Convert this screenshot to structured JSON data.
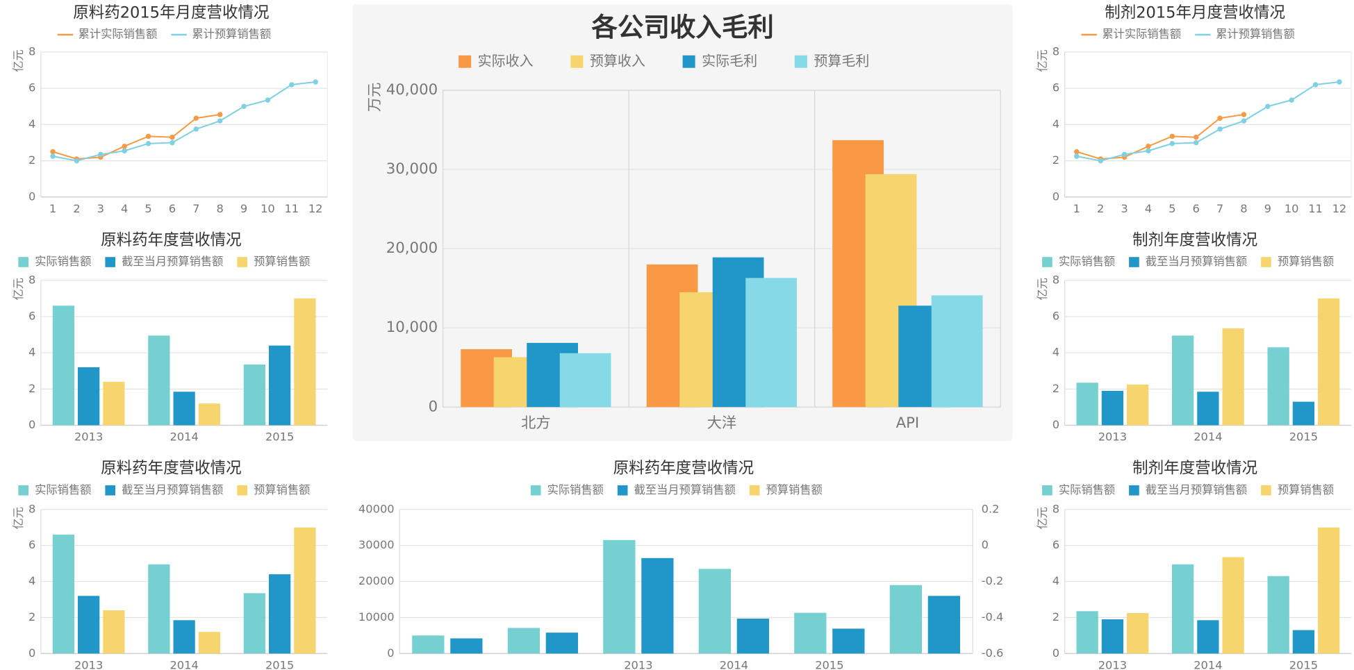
{
  "chart_data": [
    {
      "type": "line",
      "title": "原料药2015年月度营收情况",
      "y_label": "亿元",
      "categories": [
        "1",
        "2",
        "3",
        "4",
        "5",
        "6",
        "7",
        "8",
        "9",
        "10",
        "11",
        "12"
      ],
      "series": [
        {
          "name": "累计实际销售额",
          "color": "#f59a45",
          "values": [
            2.5,
            2.1,
            2.2,
            2.8,
            3.35,
            3.3,
            4.35,
            4.55,
            null,
            null,
            null,
            null
          ]
        },
        {
          "name": "累计预算销售额",
          "color": "#7fd0e0",
          "values": [
            2.25,
            2.0,
            2.35,
            2.55,
            2.95,
            3.0,
            3.75,
            4.2,
            5.0,
            5.35,
            6.2,
            6.35
          ]
        }
      ],
      "ylim": [
        0,
        8
      ],
      "yticks": [
        0,
        2,
        4,
        6,
        8
      ],
      "grid": true
    },
    {
      "type": "line",
      "title": "制剂2015年月度营收情况",
      "y_label": "亿元",
      "categories": [
        "1",
        "2",
        "3",
        "4",
        "5",
        "6",
        "7",
        "8",
        "9",
        "10",
        "11",
        "12"
      ],
      "series": [
        {
          "name": "累计实际销售额",
          "color": "#f59a45",
          "values": [
            2.5,
            2.1,
            2.2,
            2.8,
            3.35,
            3.3,
            4.35,
            4.55,
            null,
            null,
            null,
            null
          ]
        },
        {
          "name": "累计预算销售额",
          "color": "#7fd0e0",
          "values": [
            2.25,
            2.0,
            2.35,
            2.55,
            2.95,
            3.0,
            3.75,
            4.2,
            5.0,
            5.35,
            6.2,
            6.35
          ]
        }
      ],
      "ylim": [
        0,
        8
      ],
      "yticks": [
        0,
        2,
        4,
        6,
        8
      ],
      "grid": true
    },
    {
      "type": "bar",
      "title": "原料药年度营收情况",
      "y_label": "亿元",
      "categories": [
        "2013",
        "2014",
        "2015"
      ],
      "series": [
        {
          "name": "实际销售额",
          "color": "#76cfd0",
          "values": [
            6.6,
            4.95,
            3.35
          ]
        },
        {
          "name": "截至当月预算销售额",
          "color": "#2196c9",
          "values": [
            3.2,
            1.85,
            4.4
          ]
        },
        {
          "name": "预算销售额",
          "color": "#f7d56e",
          "values": [
            2.4,
            1.2,
            7.0
          ]
        }
      ],
      "ylim": [
        0,
        8
      ],
      "yticks": [
        0,
        2,
        4,
        6,
        8
      ],
      "grid": true
    },
    {
      "type": "bar",
      "title": "制剂年度营收情况",
      "y_label": "亿元",
      "categories": [
        "2013",
        "2014",
        "2015"
      ],
      "series": [
        {
          "name": "实际销售额",
          "color": "#76cfd0",
          "values": [
            2.35,
            4.95,
            4.3
          ]
        },
        {
          "name": "截至当月预算销售额",
          "color": "#2196c9",
          "values": [
            1.9,
            1.85,
            1.3
          ]
        },
        {
          "name": "预算销售额",
          "color": "#f7d56e",
          "values": [
            2.25,
            5.35,
            7.0
          ]
        }
      ],
      "ylim": [
        0,
        8
      ],
      "yticks": [
        0,
        2,
        4,
        6,
        8
      ],
      "grid": true
    },
    {
      "type": "bar",
      "title": "原料药年度营收情况",
      "y_label": "亿元",
      "categories": [
        "2013",
        "2014",
        "2015"
      ],
      "series": [
        {
          "name": "实际销售额",
          "color": "#76cfd0",
          "values": [
            6.6,
            4.95,
            3.35
          ]
        },
        {
          "name": "截至当月预算销售额",
          "color": "#2196c9",
          "values": [
            3.2,
            1.85,
            4.4
          ]
        },
        {
          "name": "预算销售额",
          "color": "#f7d56e",
          "values": [
            2.4,
            1.2,
            7.0
          ]
        }
      ],
      "ylim": [
        0,
        8
      ],
      "yticks": [
        0,
        2,
        4,
        6,
        8
      ],
      "grid": true
    },
    {
      "type": "bar",
      "title": "制剂年度营收情况",
      "y_label": "亿元",
      "categories": [
        "2013",
        "2014",
        "2015"
      ],
      "series": [
        {
          "name": "实际销售额",
          "color": "#76cfd0",
          "values": [
            2.35,
            4.95,
            4.3
          ]
        },
        {
          "name": "截至当月预算销售额",
          "color": "#2196c9",
          "values": [
            1.9,
            1.85,
            1.3
          ]
        },
        {
          "name": "预算销售额",
          "color": "#f7d56e",
          "values": [
            2.25,
            5.35,
            7.0
          ]
        }
      ],
      "ylim": [
        0,
        8
      ],
      "yticks": [
        0,
        2,
        4,
        6,
        8
      ],
      "grid": true
    },
    {
      "type": "bar",
      "title": "各公司收入毛利",
      "y_label": "万元",
      "categories": [
        "北方",
        "大洋",
        "API"
      ],
      "series": [
        {
          "name": "实际收入",
          "color": "#f99944",
          "values": [
            7300,
            18000,
            33700
          ]
        },
        {
          "name": "预算收入",
          "color": "#f7d56e",
          "values": [
            6300,
            14500,
            29400
          ]
        },
        {
          "name": "实际毛利",
          "color": "#2196c9",
          "values": [
            8100,
            18900,
            12800
          ]
        },
        {
          "name": "预算毛利",
          "color": "#86d9e6",
          "values": [
            6800,
            16300,
            14100
          ]
        }
      ],
      "ylim": [
        0,
        40000
      ],
      "yticks": [
        0,
        {
          "value": 10000,
          "label": "10,000"
        },
        {
          "value": 20000,
          "label": "20,000"
        },
        {
          "value": 30000,
          "label": "30,000"
        },
        {
          "value": 40000,
          "label": "40,000"
        }
      ],
      "grid": true
    },
    {
      "type": "bar",
      "title": "原料药年度营收情况",
      "categories": [
        null,
        null,
        "2013",
        "2014",
        "2015",
        null
      ],
      "series": [
        {
          "name": "实际销售额",
          "color": "#76cfd0",
          "values": [
            5000,
            7100,
            31500,
            23500,
            11300,
            19000
          ]
        },
        {
          "name": "截至当月预算销售额",
          "color": "#2196c9",
          "values": [
            4200,
            5800,
            26500,
            9700,
            6900,
            16000
          ]
        },
        {
          "name": "预算销售额",
          "color": "#f7d56e",
          "axis": "y2",
          "values": [
            null,
            null,
            null,
            null,
            null,
            null
          ]
        }
      ],
      "ylim": [
        0,
        40000
      ],
      "yticks": [
        0,
        10000,
        20000,
        30000,
        40000
      ],
      "y2lim": [
        -0.6,
        0.2
      ],
      "y2ticks": [
        -0.6,
        -0.4,
        -0.2,
        0,
        0.2
      ],
      "grid": true
    }
  ]
}
